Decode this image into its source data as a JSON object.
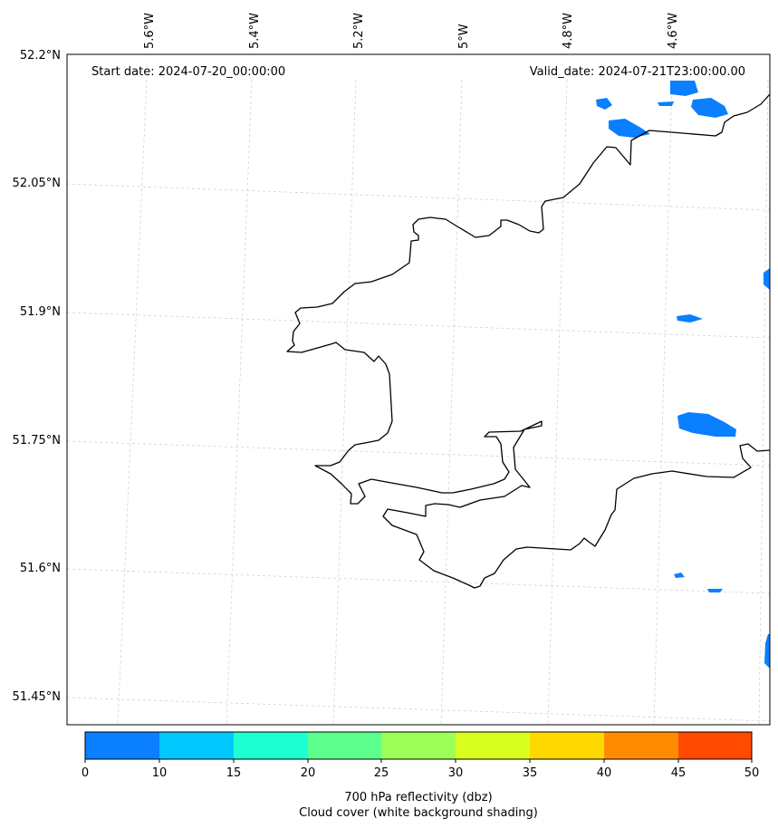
{
  "header": {
    "start_date": "Start date: 2024-07-20_00:00:00",
    "valid_date": "Valid_date: 2024-07-21T23:00:00.00"
  },
  "map": {
    "lon_labels": [
      "5.6°W",
      "5.4°W",
      "5.2°W",
      "5°W",
      "4.8°W",
      "4.6°W"
    ],
    "lat_labels": [
      "52.2°N",
      "52.05°N",
      "51.9°N",
      "51.75°N",
      "51.6°N",
      "51.45°N"
    ],
    "gridlines": true,
    "coastline_color": "#000000",
    "reflectivity_color": "#0a7fff",
    "background": "Cloud cover (white background shading)"
  },
  "colorbar": {
    "ticks": [
      "0",
      "10",
      "15",
      "20",
      "25",
      "30",
      "35",
      "40",
      "45",
      "50"
    ],
    "colors": [
      "#0a7fff",
      "#00c8ff",
      "#1effd2",
      "#5cff8c",
      "#9cff55",
      "#d8ff20",
      "#ffd800",
      "#ff8c00",
      "#ff4a00"
    ],
    "label_line1": "700 hPa reflectivity (dbz)",
    "label_line2": "Cloud cover (white background shading)"
  }
}
